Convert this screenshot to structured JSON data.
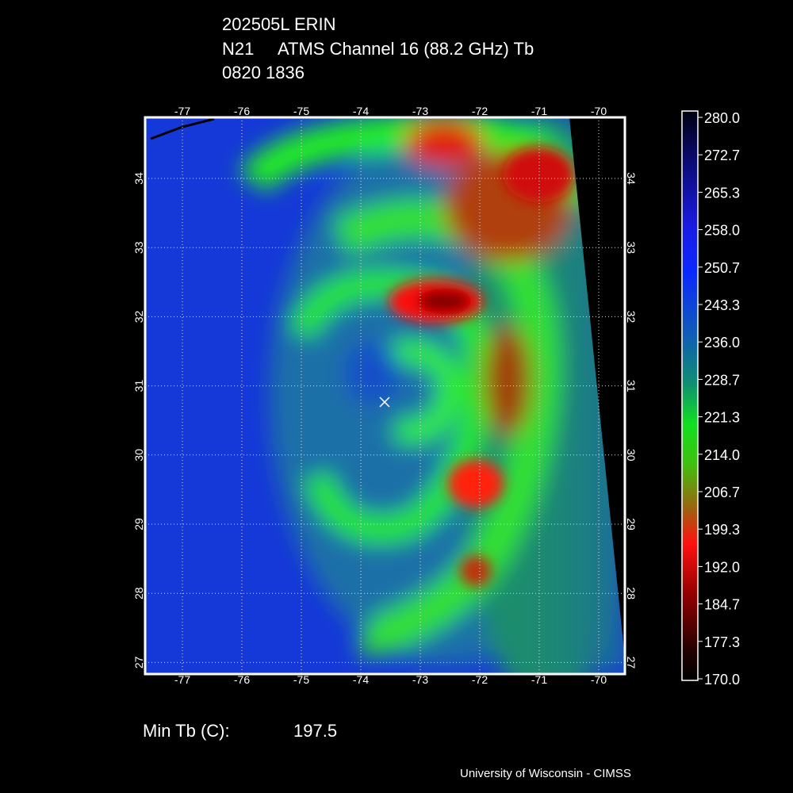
{
  "header": {
    "storm": "202505L ERIN",
    "satellite": "N21",
    "sensor": "ATMS Channel 16 (88.2 GHz) Tb",
    "time": "0820 1836"
  },
  "map": {
    "lon_ticks": [
      -77,
      -76,
      -75,
      -74,
      -73,
      -72,
      -71,
      -70
    ],
    "lat_ticks": [
      34,
      33,
      32,
      31,
      30,
      29,
      28,
      27
    ]
  },
  "colorbar": {
    "labels": [
      "280.0",
      "272.7",
      "265.3",
      "258.0",
      "250.7",
      "243.3",
      "236.0",
      "228.7",
      "221.3",
      "214.0",
      "206.7",
      "199.3",
      "192.0",
      "184.7",
      "177.3",
      "170.0"
    ]
  },
  "footer": {
    "min_label": "Min Tb (C):",
    "min_value": "197.5",
    "credit": "University of Wisconsin - CIMSS"
  }
}
